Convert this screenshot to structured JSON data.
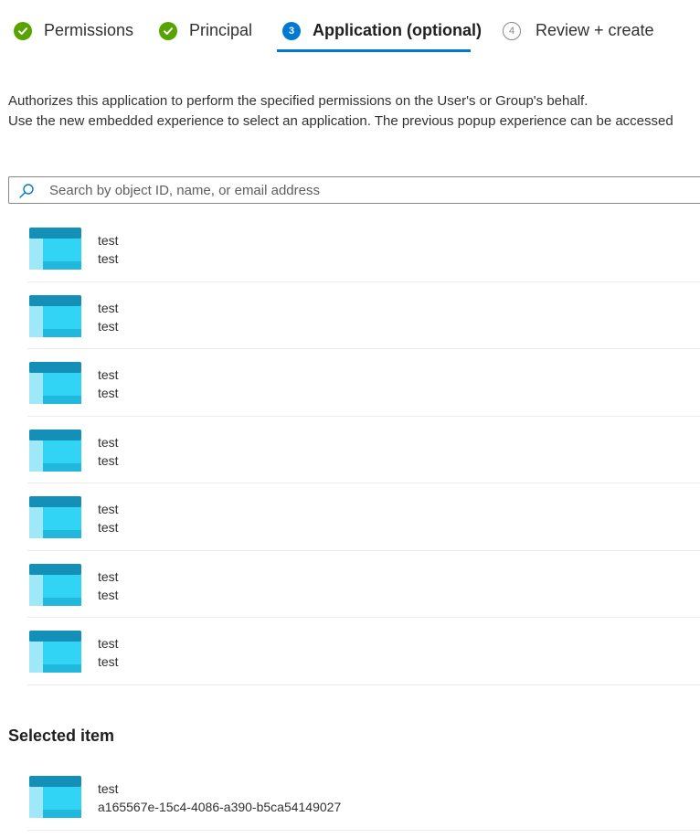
{
  "wizard": {
    "steps": [
      {
        "label": "Permissions",
        "state": "done",
        "number": ""
      },
      {
        "label": "Principal",
        "state": "done",
        "number": ""
      },
      {
        "label": "Application (optional)",
        "state": "active",
        "number": "3"
      },
      {
        "label": "Review + create",
        "state": "todo",
        "number": "4"
      }
    ]
  },
  "description": {
    "line1": "Authorizes this application to perform the specified permissions on the User's or Group's behalf.",
    "line2": "Use the new embedded experience to select an application. The previous popup experience can be accessed"
  },
  "search": {
    "placeholder": "Search by object ID, name, or email address",
    "icon": "search-icon"
  },
  "applications": [
    {
      "name": "test",
      "subtitle": "test"
    },
    {
      "name": "test",
      "subtitle": "test"
    },
    {
      "name": "test",
      "subtitle": "test"
    },
    {
      "name": "test",
      "subtitle": "test"
    },
    {
      "name": "test",
      "subtitle": "test"
    },
    {
      "name": "test",
      "subtitle": "test"
    },
    {
      "name": "test",
      "subtitle": "test"
    }
  ],
  "selected": {
    "title": "Selected item",
    "name": "test",
    "id": "a165567e-15c4-4086-a390-b5ca54149027"
  },
  "colors": {
    "done": "#57a300",
    "active": "#0078d4",
    "app_icon_dark": "#1490b8",
    "app_icon_light": "#32d4f5"
  }
}
